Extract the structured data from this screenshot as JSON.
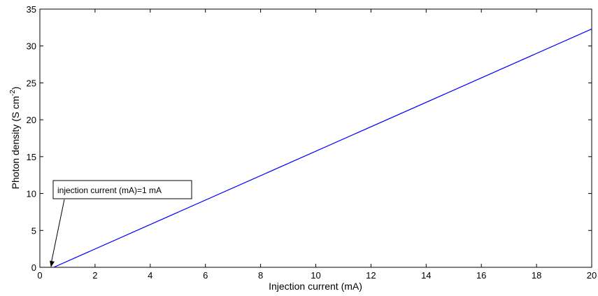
{
  "chart_data": {
    "type": "line",
    "xlabel": "Injection current (mA)",
    "ylabel_main": "Photon density (S cm",
    "ylabel_sup": "-2",
    "ylabel_close": ")",
    "xlim": [
      0,
      20
    ],
    "ylim": [
      0,
      35
    ],
    "xticks": [
      0,
      2,
      4,
      6,
      8,
      10,
      12,
      14,
      16,
      18,
      20
    ],
    "yticks": [
      0,
      5,
      10,
      15,
      20,
      25,
      30,
      35
    ],
    "grid": false,
    "series": [
      {
        "color": "#0000ff",
        "x": [
          0.5,
          20
        ],
        "y": [
          0,
          32.3
        ]
      }
    ],
    "annotation": {
      "text": "injection current (mA)=1 mA",
      "target_x": 0.4,
      "target_y": 0
    }
  }
}
